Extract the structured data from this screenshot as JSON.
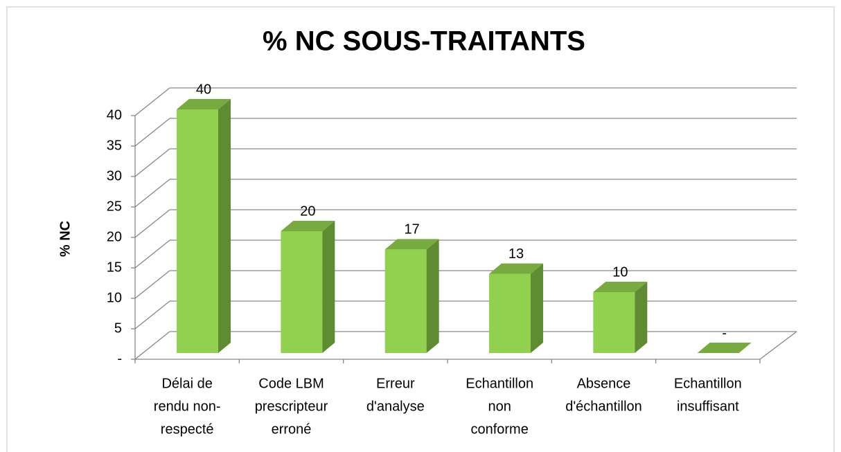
{
  "chart_data": {
    "type": "bar3d",
    "title": "% NC SOUS-TRAITANTS",
    "y_label": "% NC",
    "categories": [
      [
        "Délai de",
        "rendu non-",
        "respecté"
      ],
      [
        "Code LBM",
        "prescripteur",
        "erroné"
      ],
      [
        "Erreur",
        "d'analyse"
      ],
      [
        "Echantillon",
        "non",
        "conforme"
      ],
      [
        "Absence",
        "d'échantillon"
      ],
      [
        "Echantillon",
        "insuffisant"
      ]
    ],
    "values": [
      40,
      20,
      17,
      13,
      10,
      0
    ],
    "value_labels": [
      "40",
      "20",
      "17",
      "13",
      "10",
      "-"
    ],
    "color": "#92d050",
    "ylim": [
      0,
      40
    ],
    "yticks": [
      {
        "value": 0,
        "label": "-"
      },
      5,
      10,
      15,
      20,
      25,
      30,
      35,
      40
    ],
    "grid": true
  }
}
